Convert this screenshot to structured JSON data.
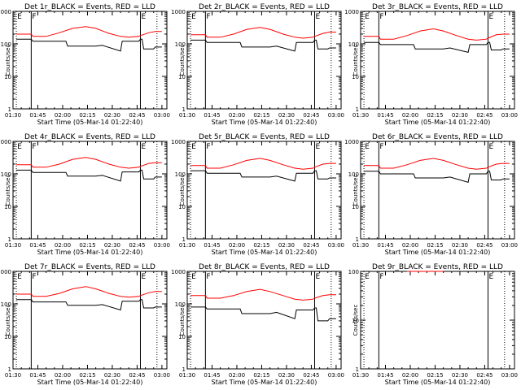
{
  "figure": {
    "background": "#ffffff",
    "axis_color": "#000000",
    "event_color": "#000000",
    "lld_color": "#ff0000"
  },
  "chart_data": [
    {
      "type": "line",
      "title": "Det 1r_BLACK = Events, RED = LLD",
      "xlabel": "Start Time (05-Mar-14 01:22:40)",
      "ylabel": "Counts/sec",
      "yscale": "log",
      "ylim": [
        1,
        1000
      ],
      "xlim_min": [
        90,
        183
      ],
      "xticks": [
        "01:30",
        "01:45",
        "02:00",
        "02:15",
        "02:30",
        "02:45",
        "03:00"
      ],
      "yticks": [
        "1",
        "10",
        "100",
        "1000"
      ],
      "markers": [
        {
          "label": "E",
          "t": 92,
          "style": "dotted"
        },
        {
          "label": "F",
          "t": 101,
          "style": "solid"
        },
        {
          "label": "E",
          "t": 167,
          "style": "solid"
        },
        {
          "label": "",
          "t": 177,
          "style": "dotted"
        }
      ],
      "series": [
        {
          "name": "Events",
          "color": "#000000",
          "x": [
            92,
            101,
            102,
            122,
            123,
            140,
            144,
            155,
            156,
            166,
            167,
            168,
            169,
            175,
            176,
            180
          ],
          "y": [
            140,
            140,
            120,
            120,
            85,
            85,
            90,
            60,
            120,
            120,
            140,
            140,
            70,
            70,
            80,
            80
          ]
        },
        {
          "name": "LLD",
          "color": "#ff0000",
          "x": [
            92,
            101,
            102,
            110,
            118,
            126,
            134,
            140,
            148,
            155,
            160,
            166,
            167,
            172,
            176,
            180
          ],
          "y": [
            200,
            200,
            170,
            170,
            220,
            300,
            340,
            300,
            210,
            170,
            160,
            170,
            180,
            220,
            240,
            240
          ]
        }
      ]
    },
    {
      "type": "line",
      "title": "Det 2r_BLACK = Events, RED = LLD",
      "xlabel": "Start Time (05-Mar-14 01:22:40)",
      "ylabel": "Counts/sec",
      "yscale": "log",
      "ylim": [
        1,
        1000
      ],
      "xlim_min": [
        90,
        183
      ],
      "xticks": [
        "01:30",
        "01:45",
        "02:00",
        "02:15",
        "02:30",
        "02:45",
        "03:00"
      ],
      "yticks": [
        "1",
        "10",
        "100",
        "1000"
      ],
      "markers": [
        {
          "label": "E",
          "t": 92,
          "style": "dotted"
        },
        {
          "label": "F",
          "t": 101,
          "style": "solid"
        },
        {
          "label": "E",
          "t": 167,
          "style": "solid"
        },
        {
          "label": "",
          "t": 177,
          "style": "dotted"
        }
      ],
      "series": [
        {
          "name": "Events",
          "color": "#000000",
          "x": [
            92,
            101,
            102,
            122,
            123,
            140,
            144,
            155,
            156,
            166,
            167,
            168,
            169,
            175,
            176,
            180
          ],
          "y": [
            130,
            130,
            110,
            110,
            80,
            80,
            85,
            60,
            110,
            110,
            130,
            130,
            70,
            70,
            75,
            75
          ]
        },
        {
          "name": "LLD",
          "color": "#ff0000",
          "x": [
            92,
            101,
            102,
            110,
            118,
            126,
            134,
            140,
            148,
            155,
            160,
            166,
            167,
            172,
            176,
            180
          ],
          "y": [
            190,
            190,
            160,
            160,
            200,
            280,
            320,
            280,
            200,
            160,
            150,
            160,
            170,
            210,
            230,
            230
          ]
        }
      ]
    },
    {
      "type": "line",
      "title": "Det 3r_BLACK = Events, RED = LLD",
      "xlabel": "Start Time (05-Mar-14 01:22:40)",
      "ylabel": "Counts/sec",
      "yscale": "log",
      "ylim": [
        1,
        1000
      ],
      "xlim_min": [
        90,
        183
      ],
      "xticks": [
        "01:30",
        "01:45",
        "02:00",
        "02:15",
        "02:30",
        "02:45",
        "03:00"
      ],
      "yticks": [
        "1",
        "10",
        "100",
        "1000"
      ],
      "markers": [
        {
          "label": "E",
          "t": 92,
          "style": "dotted"
        },
        {
          "label": "F",
          "t": 101,
          "style": "solid"
        },
        {
          "label": "E",
          "t": 167,
          "style": "solid"
        },
        {
          "label": "",
          "t": 177,
          "style": "dotted"
        }
      ],
      "series": [
        {
          "name": "Events",
          "color": "#000000",
          "x": [
            92,
            101,
            102,
            122,
            123,
            140,
            144,
            155,
            156,
            166,
            167,
            168,
            169,
            175,
            176,
            180
          ],
          "y": [
            110,
            110,
            95,
            95,
            70,
            70,
            75,
            55,
            95,
            95,
            110,
            110,
            65,
            65,
            70,
            70
          ]
        },
        {
          "name": "LLD",
          "color": "#ff0000",
          "x": [
            92,
            101,
            102,
            110,
            118,
            126,
            134,
            140,
            148,
            155,
            160,
            166,
            167,
            172,
            176,
            180
          ],
          "y": [
            170,
            170,
            140,
            140,
            180,
            250,
            290,
            250,
            180,
            140,
            130,
            140,
            150,
            190,
            200,
            200
          ]
        }
      ]
    },
    {
      "type": "line",
      "title": "Det 4r_BLACK = Events, RED = LLD",
      "xlabel": "Start Time (05-Mar-14 01:22:40)",
      "ylabel": "Counts/sec",
      "yscale": "log",
      "ylim": [
        1,
        1000
      ],
      "xlim_min": [
        90,
        183
      ],
      "xticks": [
        "01:30",
        "01:45",
        "02:00",
        "02:15",
        "02:30",
        "02:45",
        "03:00"
      ],
      "yticks": [
        "1",
        "10",
        "100",
        "1000"
      ],
      "markers": [
        {
          "label": "E",
          "t": 92,
          "style": "dotted"
        },
        {
          "label": "F",
          "t": 101,
          "style": "solid"
        },
        {
          "label": "E",
          "t": 167,
          "style": "solid"
        },
        {
          "label": "",
          "t": 177,
          "style": "dotted"
        }
      ],
      "series": [
        {
          "name": "Events",
          "color": "#000000",
          "x": [
            92,
            101,
            102,
            122,
            123,
            140,
            144,
            155,
            156,
            166,
            167,
            168,
            169,
            175,
            176,
            180
          ],
          "y": [
            130,
            130,
            110,
            110,
            85,
            85,
            90,
            60,
            115,
            115,
            130,
            130,
            70,
            70,
            80,
            80
          ]
        },
        {
          "name": "LLD",
          "color": "#ff0000",
          "x": [
            92,
            101,
            102,
            110,
            118,
            126,
            134,
            140,
            148,
            155,
            160,
            166,
            167,
            172,
            176,
            180
          ],
          "y": [
            190,
            190,
            160,
            160,
            200,
            280,
            320,
            280,
            200,
            160,
            150,
            160,
            170,
            210,
            220,
            220
          ]
        }
      ]
    },
    {
      "type": "line",
      "title": "Det 5r_BLACK = Events, RED = LLD",
      "xlabel": "Start Time (05-Mar-14 01:22:40)",
      "ylabel": "Counts/sec",
      "yscale": "log",
      "ylim": [
        1,
        1000
      ],
      "xlim_min": [
        90,
        183
      ],
      "xticks": [
        "01:30",
        "01:45",
        "02:00",
        "02:15",
        "02:30",
        "02:45",
        "03:00"
      ],
      "yticks": [
        "1",
        "10",
        "100",
        "1000"
      ],
      "markers": [
        {
          "label": "E",
          "t": 92,
          "style": "dotted"
        },
        {
          "label": "F",
          "t": 101,
          "style": "solid"
        },
        {
          "label": "E",
          "t": 167,
          "style": "solid"
        },
        {
          "label": "",
          "t": 177,
          "style": "dotted"
        }
      ],
      "series": [
        {
          "name": "Events",
          "color": "#000000",
          "x": [
            92,
            101,
            102,
            122,
            123,
            140,
            144,
            155,
            156,
            166,
            167,
            168,
            169,
            175,
            176,
            180
          ],
          "y": [
            125,
            125,
            105,
            105,
            80,
            80,
            85,
            60,
            105,
            105,
            125,
            125,
            70,
            70,
            75,
            75
          ]
        },
        {
          "name": "LLD",
          "color": "#ff0000",
          "x": [
            92,
            101,
            102,
            110,
            118,
            126,
            134,
            140,
            148,
            155,
            160,
            166,
            167,
            172,
            176,
            180
          ],
          "y": [
            180,
            180,
            150,
            150,
            190,
            260,
            300,
            260,
            190,
            150,
            140,
            150,
            160,
            200,
            210,
            210
          ]
        }
      ]
    },
    {
      "type": "line",
      "title": "Det 6r_BLACK = Events, RED = LLD",
      "xlabel": "Start Time (05-Mar-14 01:22:40)",
      "ylabel": "Counts/sec",
      "yscale": "log",
      "ylim": [
        1,
        1000
      ],
      "xlim_min": [
        90,
        183
      ],
      "xticks": [
        "01:30",
        "01:45",
        "02:00",
        "02:15",
        "02:30",
        "02:45",
        "03:00"
      ],
      "yticks": [
        "1",
        "10",
        "100",
        "1000"
      ],
      "markers": [
        {
          "label": "E",
          "t": 92,
          "style": "dotted"
        },
        {
          "label": "F",
          "t": 101,
          "style": "solid"
        },
        {
          "label": "E",
          "t": 167,
          "style": "solid"
        },
        {
          "label": "",
          "t": 177,
          "style": "dotted"
        }
      ],
      "series": [
        {
          "name": "Events",
          "color": "#000000",
          "x": [
            92,
            101,
            102,
            122,
            123,
            140,
            144,
            155,
            156,
            166,
            167,
            168,
            169,
            175,
            176,
            180
          ],
          "y": [
            120,
            120,
            100,
            100,
            75,
            75,
            80,
            55,
            100,
            100,
            120,
            120,
            65,
            65,
            70,
            70
          ]
        },
        {
          "name": "LLD",
          "color": "#ff0000",
          "x": [
            92,
            101,
            102,
            110,
            118,
            126,
            134,
            140,
            148,
            155,
            160,
            166,
            167,
            172,
            176,
            180
          ],
          "y": [
            180,
            180,
            150,
            150,
            190,
            260,
            300,
            260,
            190,
            150,
            140,
            150,
            160,
            200,
            210,
            210
          ]
        }
      ]
    },
    {
      "type": "line",
      "title": "Det 7r_BLACK = Events, RED = LLD",
      "xlabel": "Start Time (05-Mar-14 01:22:40)",
      "ylabel": "Counts/sec",
      "yscale": "log",
      "ylim": [
        1,
        1000
      ],
      "xlim_min": [
        90,
        183
      ],
      "xticks": [
        "01:30",
        "01:45",
        "02:00",
        "02:15",
        "02:30",
        "02:45",
        "03:00"
      ],
      "yticks": [
        "1",
        "10",
        "100",
        "1000"
      ],
      "markers": [
        {
          "label": "E",
          "t": 92,
          "style": "dotted"
        },
        {
          "label": "F",
          "t": 101,
          "style": "solid"
        },
        {
          "label": "E",
          "t": 167,
          "style": "solid"
        },
        {
          "label": "",
          "t": 177,
          "style": "dotted"
        }
      ],
      "series": [
        {
          "name": "Events",
          "color": "#000000",
          "x": [
            92,
            101,
            102,
            122,
            123,
            140,
            144,
            155,
            156,
            166,
            167,
            168,
            169,
            175,
            176,
            180
          ],
          "y": [
            135,
            135,
            115,
            115,
            90,
            90,
            95,
            65,
            120,
            120,
            135,
            135,
            75,
            75,
            80,
            80
          ]
        },
        {
          "name": "LLD",
          "color": "#ff0000",
          "x": [
            92,
            101,
            102,
            110,
            118,
            126,
            134,
            140,
            148,
            155,
            160,
            166,
            167,
            172,
            176,
            180
          ],
          "y": [
            200,
            200,
            170,
            170,
            210,
            290,
            340,
            290,
            210,
            170,
            160,
            170,
            180,
            220,
            240,
            240
          ]
        }
      ]
    },
    {
      "type": "line",
      "title": "Det 8r_BLACK = Events, RED = LLD",
      "xlabel": "Start Time (05-Mar-14 01:22:40)",
      "ylabel": "Counts/sec",
      "yscale": "log",
      "ylim": [
        1,
        1000
      ],
      "xlim_min": [
        90,
        183
      ],
      "xticks": [
        "01:30",
        "01:45",
        "02:00",
        "02:15",
        "02:30",
        "02:45",
        "03:00"
      ],
      "yticks": [
        "1",
        "10",
        "100",
        "1000"
      ],
      "markers": [
        {
          "label": "E",
          "t": 92,
          "style": "dotted"
        },
        {
          "label": "F",
          "t": 101,
          "style": "solid"
        },
        {
          "label": "E",
          "t": 167,
          "style": "solid"
        },
        {
          "label": "",
          "t": 177,
          "style": "dotted"
        }
      ],
      "series": [
        {
          "name": "Events",
          "color": "#000000",
          "x": [
            92,
            101,
            102,
            122,
            123,
            140,
            144,
            155,
            156,
            166,
            167,
            168,
            169,
            175,
            176,
            180
          ],
          "y": [
            80,
            80,
            70,
            70,
            50,
            50,
            55,
            35,
            65,
            65,
            75,
            75,
            30,
            30,
            35,
            35
          ]
        },
        {
          "name": "LLD",
          "color": "#ff0000",
          "x": [
            92,
            101,
            102,
            110,
            118,
            126,
            134,
            140,
            148,
            155,
            160,
            166,
            167,
            172,
            176,
            180
          ],
          "y": [
            180,
            180,
            150,
            150,
            180,
            240,
            280,
            240,
            180,
            140,
            130,
            140,
            150,
            180,
            190,
            190
          ]
        }
      ]
    },
    {
      "type": "line",
      "title": "Det 9r_BLACK = Events, RED = LLD",
      "xlabel": "Start Time (05-Mar-14 01:22:40)",
      "ylabel": "Counts/sec",
      "yscale": "log",
      "ylim": [
        1,
        100
      ],
      "xlim_min": [
        90,
        183
      ],
      "xticks": [
        "01:30",
        "01:45",
        "02:00",
        "02:15",
        "02:30",
        "02:45",
        "03:00"
      ],
      "yticks": [
        "1",
        "10",
        "100"
      ],
      "markers": [
        {
          "label": "E",
          "t": 92,
          "style": "dotted"
        },
        {
          "label": "F",
          "t": 101,
          "style": "solid"
        },
        {
          "label": "E",
          "t": 167,
          "style": "solid"
        },
        {
          "label": "",
          "t": 177,
          "style": "dotted"
        }
      ],
      "series": [
        {
          "name": "Events",
          "color": "#000000",
          "x": [],
          "y": []
        },
        {
          "name": "LLD",
          "color": "#ff0000",
          "x": [
            118,
            126,
            134,
            140
          ],
          "y": [
            100,
            100,
            100,
            100
          ]
        }
      ]
    }
  ]
}
